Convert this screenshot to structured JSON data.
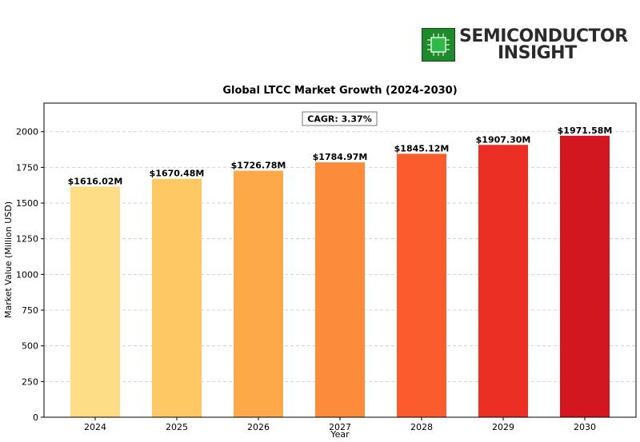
{
  "logo": {
    "line1": "SEMICONDUCTOR",
    "line2": "INSIGHT",
    "icon": "chip-icon"
  },
  "chart_data": {
    "type": "bar",
    "title": "Global LTCC Market Growth (2024-2030)",
    "xlabel": "Year",
    "ylabel": "Market Value (Million USD)",
    "annotation": "CAGR: 3.37%",
    "categories": [
      "2024",
      "2025",
      "2026",
      "2027",
      "2028",
      "2029",
      "2030"
    ],
    "values": [
      1616.02,
      1670.48,
      1726.78,
      1784.97,
      1845.12,
      1907.3,
      1971.58
    ],
    "data_labels": [
      "$1616.02M",
      "$1670.48M",
      "$1726.78M",
      "$1784.97M",
      "$1845.12M",
      "$1907.30M",
      "$1971.58M"
    ],
    "colors": [
      "#fddd85",
      "#fec864",
      "#fda94a",
      "#fc8b3c",
      "#fa5c2e",
      "#ec2f24",
      "#d21721"
    ],
    "ylim": [
      0,
      2200
    ],
    "yticks": [
      0,
      250,
      500,
      750,
      1000,
      1250,
      1500,
      1750,
      2000
    ],
    "grid": "horizontal-dashed",
    "legend": "none"
  }
}
